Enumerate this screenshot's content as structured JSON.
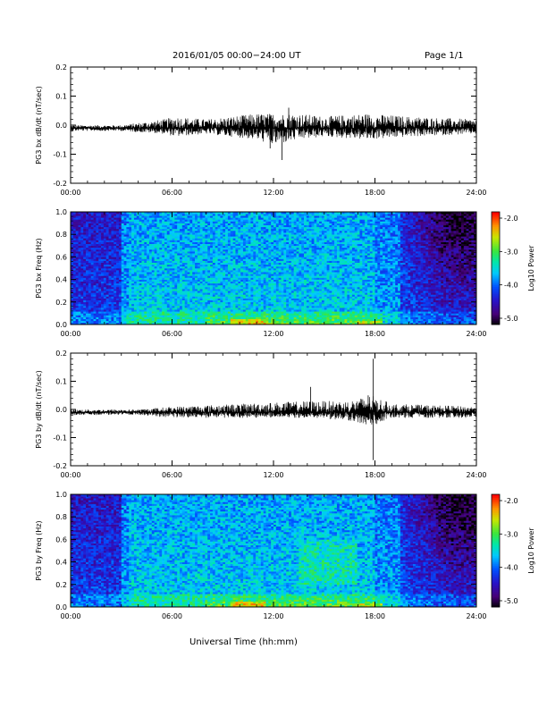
{
  "header": {
    "title": "2016/01/05  00:00−24:00 UT",
    "page": "Page 1/1"
  },
  "xlabel": "Universal Time (hh:mm)",
  "chart_data": [
    {
      "id": "bx-line",
      "type": "line",
      "ylabel": "PG3 bx dB/dt (nT/sec)",
      "xlim": [
        0,
        24
      ],
      "ylim": [
        -0.2,
        0.2
      ],
      "x_ticklabels": [
        "00:00",
        "06:00",
        "12:00",
        "18:00",
        "24:00"
      ],
      "y_ticklabels": [
        "0.2",
        "0.1",
        "0.0",
        "-0.1",
        "-0.2"
      ],
      "baseline": -0.01,
      "envelope_points": [
        {
          "x": 0,
          "low": -0.02,
          "high": 0.0
        },
        {
          "x": 3,
          "low": -0.02,
          "high": 0.0
        },
        {
          "x": 5.5,
          "low": -0.03,
          "high": 0.02
        },
        {
          "x": 6.2,
          "low": -0.04,
          "high": 0.03
        },
        {
          "x": 8,
          "low": -0.03,
          "high": 0.02
        },
        {
          "x": 11,
          "low": -0.05,
          "high": 0.04
        },
        {
          "x": 12,
          "low": -0.07,
          "high": 0.04
        },
        {
          "x": 13.5,
          "low": -0.05,
          "high": 0.04
        },
        {
          "x": 15,
          "low": -0.04,
          "high": 0.03
        },
        {
          "x": 17.5,
          "low": -0.05,
          "high": 0.04
        },
        {
          "x": 20,
          "low": -0.04,
          "high": 0.03
        },
        {
          "x": 24,
          "low": -0.03,
          "high": 0.02
        }
      ],
      "spikes": [
        {
          "x": 12.5,
          "y": -0.12
        },
        {
          "x": 11.8,
          "y": -0.08
        },
        {
          "x": 12.9,
          "y": 0.06
        }
      ]
    },
    {
      "id": "bx-spectrogram",
      "type": "heatmap",
      "ylabel": "PG3 bx Freq (Hz)",
      "xlim": [
        0,
        24
      ],
      "ylim": [
        0,
        1.0
      ],
      "x_ticklabels": [
        "00:00",
        "06:00",
        "12:00",
        "18:00",
        "24:00"
      ],
      "y_ticklabels": [
        "1.0",
        "0.8",
        "0.6",
        "0.4",
        "0.2",
        "0.0"
      ],
      "colorbar": {
        "label": "Log10 Power",
        "range": [
          -5.0,
          -2.0
        ],
        "ticklabels": [
          "-2.0",
          "-3.0",
          "-4.0",
          "-5.0"
        ]
      }
    },
    {
      "id": "by-line",
      "type": "line",
      "ylabel": "PG3 by dB/dt (nT/sec)",
      "xlim": [
        0,
        24
      ],
      "ylim": [
        -0.2,
        0.2
      ],
      "x_ticklabels": [
        "00:00",
        "06:00",
        "12:00",
        "18:00",
        "24:00"
      ],
      "y_ticklabels": [
        "0.2",
        "0.1",
        "0.0",
        "-0.1",
        "-0.2"
      ],
      "baseline": -0.01,
      "envelope_points": [
        {
          "x": 0,
          "low": -0.02,
          "high": 0.0
        },
        {
          "x": 4,
          "low": -0.02,
          "high": 0.0
        },
        {
          "x": 6,
          "low": -0.03,
          "high": 0.01
        },
        {
          "x": 10,
          "low": -0.03,
          "high": 0.02
        },
        {
          "x": 14,
          "low": -0.03,
          "high": 0.03
        },
        {
          "x": 16.5,
          "low": -0.04,
          "high": 0.03
        },
        {
          "x": 17.8,
          "low": -0.06,
          "high": 0.05
        },
        {
          "x": 19,
          "low": -0.03,
          "high": 0.02
        },
        {
          "x": 24,
          "low": -0.03,
          "high": 0.01
        }
      ],
      "spikes": [
        {
          "x": 17.9,
          "y": 0.18
        },
        {
          "x": 17.9,
          "y": -0.18
        },
        {
          "x": 14.2,
          "y": 0.08
        },
        {
          "x": 17.6,
          "y": 0.05
        }
      ]
    },
    {
      "id": "by-spectrogram",
      "type": "heatmap",
      "ylabel": "PG3 by Freq (Hz)",
      "xlim": [
        0,
        24
      ],
      "ylim": [
        0,
        1.0
      ],
      "x_ticklabels": [
        "00:00",
        "06:00",
        "12:00",
        "18:00",
        "24:00"
      ],
      "y_ticklabels": [
        "1.0",
        "0.8",
        "0.6",
        "0.4",
        "0.2",
        "0.0"
      ],
      "colorbar": {
        "label": "Log10 Power",
        "range": [
          -5.0,
          -2.0
        ],
        "ticklabels": [
          "-2.0",
          "-3.0",
          "-4.0",
          "-5.0"
        ]
      }
    }
  ]
}
